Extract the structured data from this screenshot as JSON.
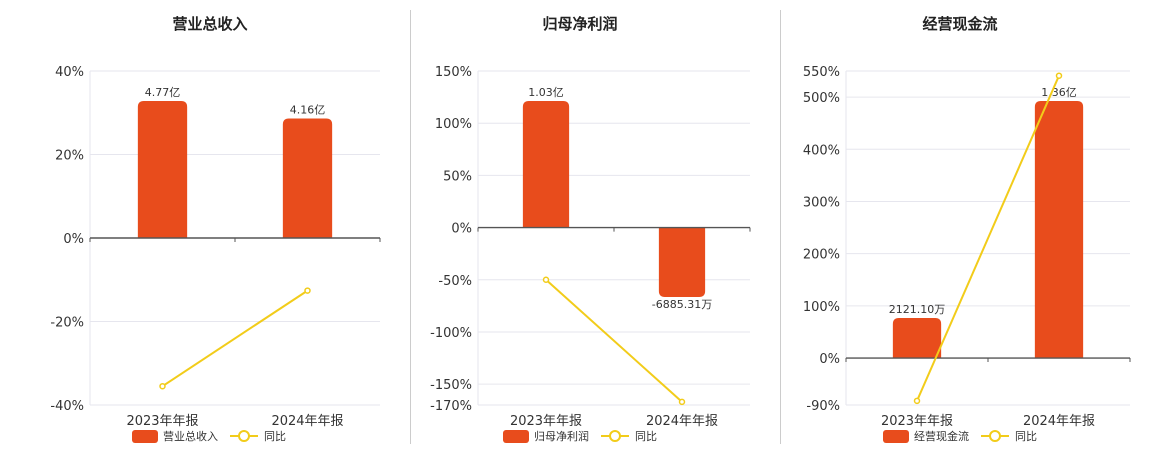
{
  "colors": {
    "bar": "#E84C1C",
    "line": "#F2CC1A",
    "grid": "#E6E6EE",
    "axis": "#555555"
  },
  "chart_data": [
    {
      "type": "bar",
      "title": "营业总收入",
      "categories": [
        "2023年年报",
        "2024年年报"
      ],
      "series": [
        {
          "name": "营业总收入",
          "kind": "bar",
          "values": [
            4.77,
            4.16
          ],
          "labels": [
            "4.77亿",
            "4.16亿"
          ],
          "unit": "亿"
        },
        {
          "name": "同比",
          "kind": "line",
          "values": [
            -35.5,
            -12.6
          ],
          "unit": "%"
        }
      ],
      "y_ticks": [
        40,
        20,
        0,
        -20,
        -40
      ],
      "y_tick_labels": [
        "40%",
        "20%",
        "0%",
        "-20%",
        "-40%"
      ],
      "ylim": [
        -40,
        40
      ],
      "grid": true,
      "legend": "bottom-center"
    },
    {
      "type": "bar",
      "title": "归母净利润",
      "categories": [
        "2023年年报",
        "2024年年报"
      ],
      "series": [
        {
          "name": "归母净利润",
          "kind": "bar",
          "values": [
            1.03,
            -0.6885
          ],
          "labels": [
            "1.03亿",
            "-6885.31万"
          ],
          "unit": "亿"
        },
        {
          "name": "同比",
          "kind": "line",
          "values": [
            -50,
            -167
          ],
          "unit": "%"
        }
      ],
      "y_ticks": [
        150,
        100,
        50,
        0,
        -50,
        -100,
        -150,
        -170
      ],
      "y_tick_labels": [
        "150%",
        "100%",
        "50%",
        "0%",
        "-50%",
        "-100%",
        "-150%",
        "-170%"
      ],
      "ylim": [
        -170,
        150
      ],
      "grid": true,
      "legend": "bottom-center"
    },
    {
      "type": "bar",
      "title": "经营现金流",
      "categories": [
        "2023年年报",
        "2024年年报"
      ],
      "series": [
        {
          "name": "经营现金流",
          "kind": "bar",
          "values": [
            0.2121,
            1.36
          ],
          "labels": [
            "2121.10万",
            "1.36亿"
          ],
          "unit": "亿"
        },
        {
          "name": "同比",
          "kind": "line",
          "values": [
            -82,
            541
          ],
          "unit": "%"
        }
      ],
      "y_ticks": [
        550,
        500,
        400,
        300,
        200,
        100,
        0,
        -90
      ],
      "y_tick_labels": [
        "550%",
        "500%",
        "400%",
        "300%",
        "200%",
        "100%",
        "0%",
        "-90%"
      ],
      "ylim": [
        -90,
        550
      ],
      "grid": true,
      "legend": "bottom-center"
    }
  ]
}
